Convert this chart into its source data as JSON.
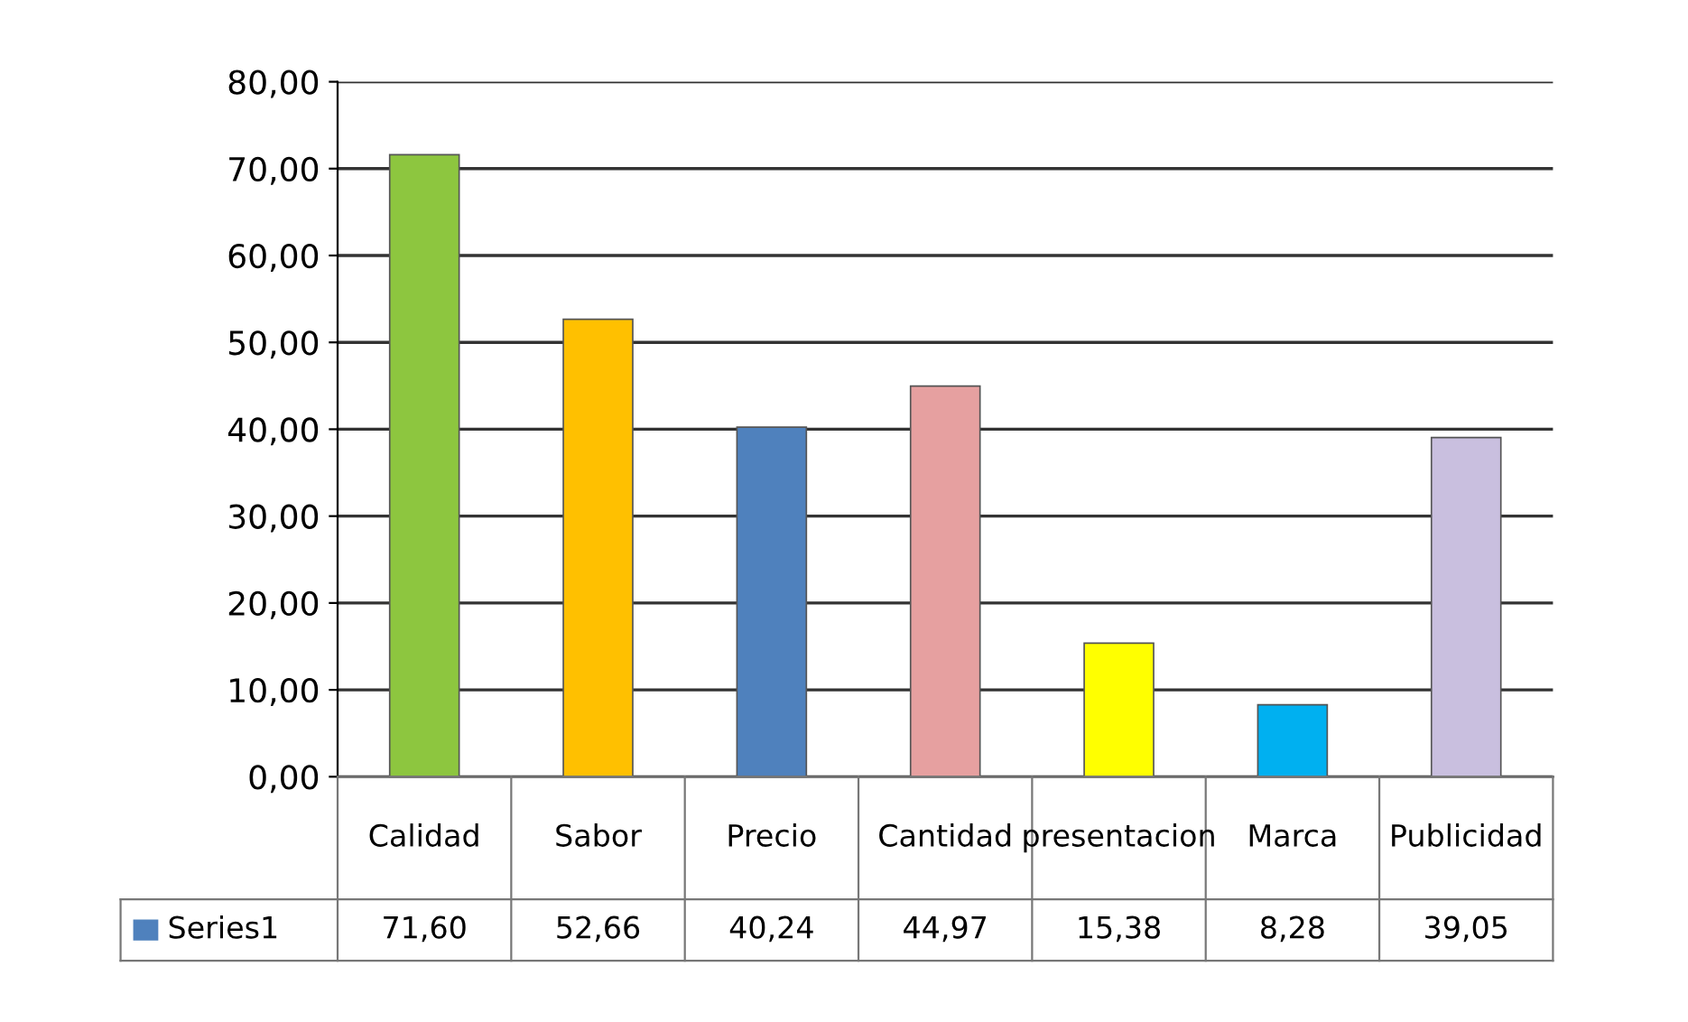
{
  "chart_data": {
    "type": "bar",
    "categories": [
      "Calidad",
      "Sabor",
      "Precio",
      "Cantidad",
      "presentacion",
      "Marca",
      "Publicidad"
    ],
    "series": [
      {
        "name": "Series1",
        "color": "#4f81bd",
        "colors": [
          "#8dc63f",
          "#ffc000",
          "#4f81bd",
          "#e6a0a0",
          "#ffff00",
          "#00b0f0",
          "#c9bfdf"
        ],
        "values": [
          71.6,
          52.66,
          40.24,
          44.97,
          15.38,
          8.28,
          39.05
        ],
        "value_labels": [
          "71,60",
          "52,66",
          "40,24",
          "44,97",
          "15,38",
          "8,28",
          "39,05"
        ]
      }
    ],
    "ylim": [
      0,
      80
    ],
    "yticks": [
      {
        "value": 0,
        "label": "0,00"
      },
      {
        "value": 10,
        "label": "10,00"
      },
      {
        "value": 20,
        "label": "20,00"
      },
      {
        "value": 30,
        "label": "30,00"
      },
      {
        "value": 40,
        "label": "40,00"
      },
      {
        "value": 50,
        "label": "50,00"
      },
      {
        "value": 60,
        "label": "60,00"
      },
      {
        "value": 70,
        "label": "70,00"
      },
      {
        "value": 80,
        "label": "80,00"
      }
    ],
    "grid": "y",
    "legend": "bottom"
  }
}
